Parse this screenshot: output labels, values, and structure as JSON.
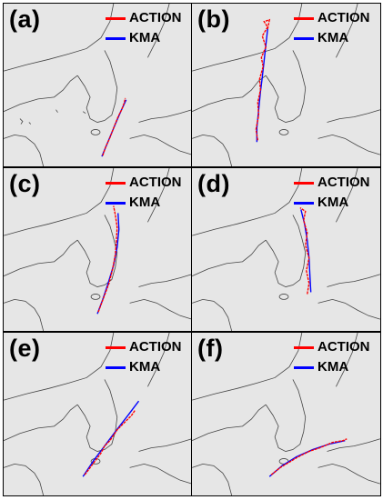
{
  "colors": {
    "action": "#ff0000",
    "kma": "#0000ff",
    "land": "#e6e6e6",
    "coast": "#444444"
  },
  "panels": [
    {
      "label": "(a)",
      "legend": [
        {
          "name": "ACTION",
          "color": "#ff0000"
        },
        {
          "name": "KMA",
          "color": "#0000ff"
        }
      ]
    },
    {
      "label": "(b)",
      "legend": [
        {
          "name": "ACTION",
          "color": "#ff0000"
        },
        {
          "name": "KMA",
          "color": "#0000ff"
        }
      ]
    },
    {
      "label": "(c)",
      "legend": [
        {
          "name": "ACTION",
          "color": "#ff0000"
        },
        {
          "name": "KMA",
          "color": "#0000ff"
        }
      ]
    },
    {
      "label": "(d)",
      "legend": [
        {
          "name": "ACTION",
          "color": "#ff0000"
        },
        {
          "name": "KMA",
          "color": "#0000ff"
        }
      ]
    },
    {
      "label": "(e)",
      "legend": [
        {
          "name": "ACTION",
          "color": "#ff0000"
        },
        {
          "name": "KMA",
          "color": "#0000ff"
        }
      ]
    },
    {
      "label": "(f)",
      "legend": [
        {
          "name": "ACTION",
          "color": "#ff0000"
        },
        {
          "name": "KMA",
          "color": "#0000ff"
        }
      ]
    }
  ]
}
